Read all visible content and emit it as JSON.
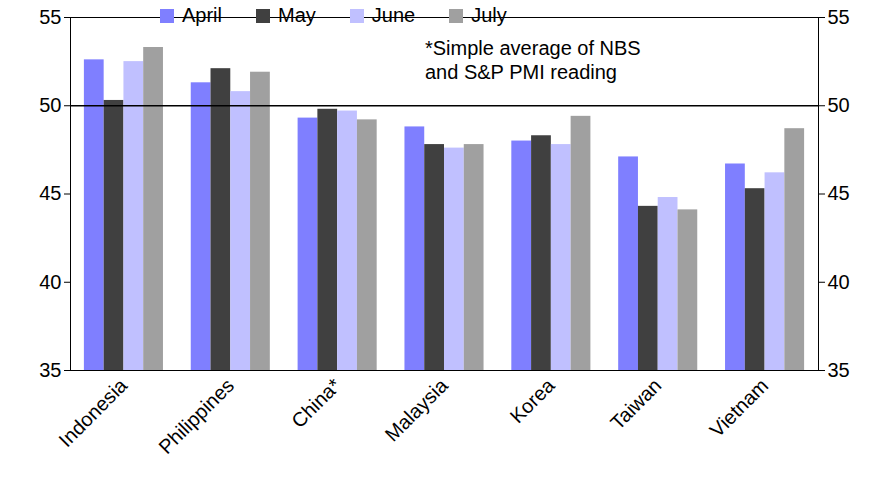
{
  "chart_data": {
    "type": "bar",
    "categories": [
      "Indonesia",
      "Philippines",
      "China*",
      "Malaysia",
      "Korea",
      "Taiwan",
      "Vietnam"
    ],
    "series": [
      {
        "name": "April",
        "color": "#7f7fff",
        "values": [
          52.6,
          51.3,
          49.3,
          48.8,
          48.0,
          47.1,
          46.7
        ]
      },
      {
        "name": "May",
        "color": "#404040",
        "values": [
          50.3,
          52.1,
          49.8,
          47.8,
          48.3,
          44.3,
          45.3
        ]
      },
      {
        "name": "June",
        "color": "#c0c0ff",
        "values": [
          52.5,
          50.8,
          49.7,
          47.6,
          47.8,
          44.8,
          46.2
        ]
      },
      {
        "name": "July",
        "color": "#a0a0a0",
        "values": [
          53.3,
          51.9,
          49.2,
          47.8,
          49.4,
          44.1,
          48.7
        ]
      }
    ],
    "annotation": [
      "*Simple average of NBS",
      "and S&P PMI reading"
    ],
    "reference_line": 50,
    "ylim": [
      35,
      55
    ],
    "yticks": [
      35,
      40,
      45,
      50,
      55
    ],
    "legend": "top"
  }
}
